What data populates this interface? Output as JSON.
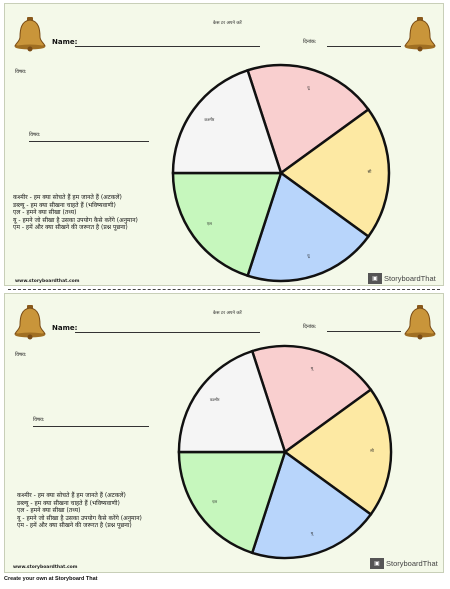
{
  "worksheet": {
    "header_title": "केस टर अपने करें",
    "name_label": "Name:",
    "date_label": "दिनांक:",
    "topic_label": "विषय:",
    "center_label": "विषय:",
    "legend": [
      "कश्मीर - हम क्या सोचते हैं हम जानते हैं (अटकलें)",
      "डब्ल्यू - हम क्या सीखना चाहते हैं (भविष्यवाणी)",
      "एल - हमने क्या सीखा (तथ्य)",
      "यू - हमने जो सीखा है उसका उपयोग कैसे करेंगे (अनुमान)",
      "एम - हमें और क्या सीखने की जरूरत है (प्रश्न पूछना)"
    ],
    "segments": [
      {
        "label": "यू",
        "color": "#f9cfcf"
      },
      {
        "label": "सी",
        "color": "#fde9a3"
      },
      {
        "label": "यू",
        "color": "#b8d5fb"
      },
      {
        "label": "एल",
        "color": "#c6f7bd"
      },
      {
        "label": "कश्मीर",
        "color": "#f5f5f5"
      }
    ],
    "website": "www.storyboardthat.com",
    "logo_text": "StoryboardThat"
  },
  "footer": {
    "text": "Create your own at Storyboard That"
  },
  "colors": {
    "bell": "#c9953a",
    "sheet_bg": "#f4f9e9"
  }
}
